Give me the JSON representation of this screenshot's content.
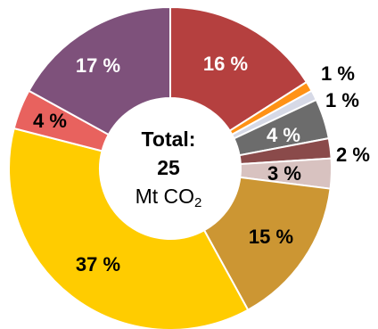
{
  "chart_data": {
    "type": "pie",
    "donut": true,
    "center": {
      "title": "Total:",
      "value": "25",
      "unit": "Mt CO",
      "unit_subscript": "2"
    },
    "slices": [
      {
        "value": 16,
        "label": "16 %",
        "color": "#b5403f"
      },
      {
        "value": 1,
        "label": "1 %",
        "color": "#ff9216"
      },
      {
        "value": 1,
        "label": "1 %",
        "color": "#d6d9e6"
      },
      {
        "value": 4,
        "label": "4 %",
        "color": "#6c6c6c"
      },
      {
        "value": 2,
        "label": "2 %",
        "color": "#8a4a4a"
      },
      {
        "value": 3,
        "label": "3 %",
        "color": "#d8c2c0"
      },
      {
        "value": 15,
        "label": "15 %",
        "color": "#cc9633"
      },
      {
        "value": 37,
        "label": "37 %",
        "color": "#ffcc00"
      },
      {
        "value": 4,
        "label": "4 %",
        "color": "#e8625e"
      },
      {
        "value": 17,
        "label": "17 %",
        "color": "#7e517b"
      }
    ]
  }
}
